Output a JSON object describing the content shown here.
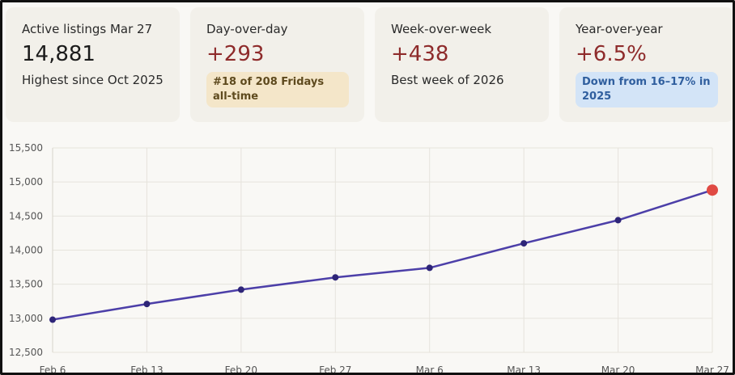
{
  "cards": [
    {
      "title": "Active listings Mar 27",
      "value": "14,881",
      "sub": "Highest since Oct 2025"
    },
    {
      "title": "Day-over-day",
      "value": "+293",
      "badge": "#18 of 208 Fridays all-time"
    },
    {
      "title": "Week-over-week",
      "value": "+438",
      "sub": "Best week of 2026"
    },
    {
      "title": "Year-over-year",
      "value": "+6.5%",
      "badge": "Down from 16–17% in 2025"
    }
  ],
  "colors": {
    "line": "#4c3fa8",
    "point": "#2e2578",
    "highlight_point": "#e04a43",
    "positive_value": "#8e2b2b",
    "amber_badge_bg": "#f4e6c9",
    "blue_badge_bg": "#d3e4f7"
  },
  "chart_data": {
    "type": "line",
    "categories": [
      "Feb 6",
      "Feb 13",
      "Feb 20",
      "Feb 27",
      "Mar 6",
      "Mar 13",
      "Mar 20",
      "Mar 27"
    ],
    "values": [
      12980,
      13210,
      13420,
      13600,
      13740,
      14100,
      14440,
      14881
    ],
    "ylim": [
      12500,
      15500
    ],
    "yticks": [
      12500,
      13000,
      13500,
      14000,
      14500,
      15000,
      15500
    ],
    "ytick_labels": [
      "12,500",
      "13,000",
      "13,500",
      "14,000",
      "14,500",
      "15,000",
      "15,500"
    ],
    "grid": true,
    "highlight_last_point": true,
    "title": "",
    "xlabel": "",
    "ylabel": ""
  }
}
